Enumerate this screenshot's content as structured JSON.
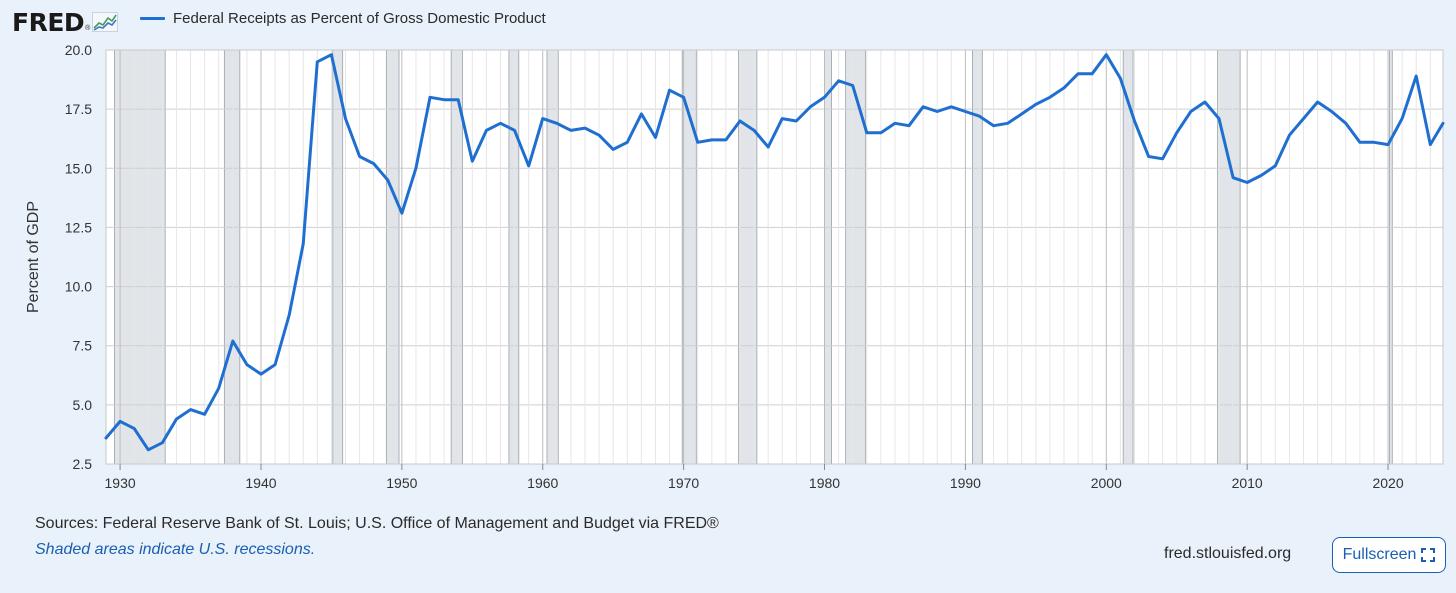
{
  "header": {
    "logo_text": "FRED",
    "logo_mark": "®",
    "legend_label": "Federal Receipts as Percent of Gross Domestic Product"
  },
  "footer": {
    "sources": "Sources: Federal Reserve Bank of St. Louis; U.S. Office of Management and Budget via FRED®",
    "recession_note": "Shaded areas indicate U.S. recessions.",
    "site": "fred.stlouisfed.org",
    "fullscreen_label": "Fullscreen"
  },
  "colors": {
    "line": "#1f6fd1",
    "recession": "#e1e5ea",
    "grid": "#cfcfcf",
    "background": "#e9f1fa"
  },
  "chart_data": {
    "type": "line",
    "ylabel": "Percent of GDP",
    "xlim": [
      1929,
      2023.9
    ],
    "ylim": [
      2.5,
      20.0
    ],
    "yticks": [
      "2.5",
      "5.0",
      "7.5",
      "10.0",
      "12.5",
      "15.0",
      "17.5",
      "20.0"
    ],
    "xticks": [
      "1930",
      "1940",
      "1950",
      "1960",
      "1970",
      "1980",
      "1990",
      "2000",
      "2010",
      "2020"
    ],
    "recessions": [
      [
        1929.6,
        1933.2
      ],
      [
        1937.4,
        1938.5
      ],
      [
        1945.1,
        1945.8
      ],
      [
        1948.9,
        1949.8
      ],
      [
        1953.5,
        1954.3
      ],
      [
        1957.6,
        1958.3
      ],
      [
        1960.3,
        1961.1
      ],
      [
        1969.9,
        1970.9
      ],
      [
        1973.9,
        1975.2
      ],
      [
        1980.0,
        1980.5
      ],
      [
        1981.5,
        1982.9
      ],
      [
        1990.5,
        1991.2
      ],
      [
        2001.2,
        2001.9
      ],
      [
        2007.9,
        2009.5
      ],
      [
        2020.1,
        2020.3
      ]
    ],
    "series": [
      {
        "x": [
          1929,
          1930,
          1931,
          1932,
          1933,
          1934,
          1935,
          1936,
          1937,
          1938,
          1939,
          1940,
          1941,
          1942,
          1943,
          1944,
          1945,
          1946,
          1947,
          1948,
          1949,
          1950,
          1951,
          1952,
          1953,
          1954,
          1955,
          1956,
          1957,
          1958,
          1959,
          1960,
          1961,
          1962,
          1963,
          1964,
          1965,
          1966,
          1967,
          1968,
          1969,
          1970,
          1971,
          1972,
          1973,
          1974,
          1975,
          1976,
          1977,
          1978,
          1979,
          1980,
          1981,
          1982,
          1983,
          1984,
          1985,
          1986,
          1987,
          1988,
          1989,
          1990,
          1991,
          1992,
          1993,
          1994,
          1995,
          1996,
          1997,
          1998,
          1999,
          2000,
          2001,
          2002,
          2003,
          2004,
          2005,
          2006,
          2007,
          2008,
          2009,
          2010,
          2011,
          2012,
          2013,
          2014,
          2015,
          2016,
          2017,
          2018,
          2019,
          2020,
          2021,
          2022,
          2023,
          2024
        ],
        "values": [
          3.6,
          4.3,
          4.0,
          3.1,
          3.4,
          4.4,
          4.8,
          4.6,
          5.7,
          7.7,
          6.7,
          6.3,
          6.7,
          8.8,
          11.8,
          19.5,
          19.8,
          17.1,
          15.5,
          15.2,
          14.5,
          13.1,
          15.0,
          18.0,
          17.9,
          17.9,
          15.3,
          16.6,
          16.9,
          16.6,
          15.1,
          17.1,
          16.9,
          16.6,
          16.7,
          16.4,
          15.8,
          16.1,
          17.3,
          16.3,
          18.3,
          18.0,
          16.1,
          16.2,
          16.2,
          17.0,
          16.6,
          15.9,
          17.1,
          17.0,
          17.6,
          18.0,
          18.7,
          18.5,
          16.5,
          16.5,
          16.9,
          16.8,
          17.6,
          17.4,
          17.6,
          17.4,
          17.2,
          16.8,
          16.9,
          17.3,
          17.7,
          18.0,
          18.4,
          19.0,
          19.0,
          19.8,
          18.8,
          17.0,
          15.5,
          15.4,
          16.5,
          17.4,
          17.8,
          17.1,
          14.6,
          14.4,
          14.7,
          15.1,
          16.4,
          17.1,
          17.8,
          17.4,
          16.9,
          16.1,
          16.1,
          16.0,
          17.1,
          18.9,
          16.0,
          16.9
        ]
      }
    ]
  }
}
